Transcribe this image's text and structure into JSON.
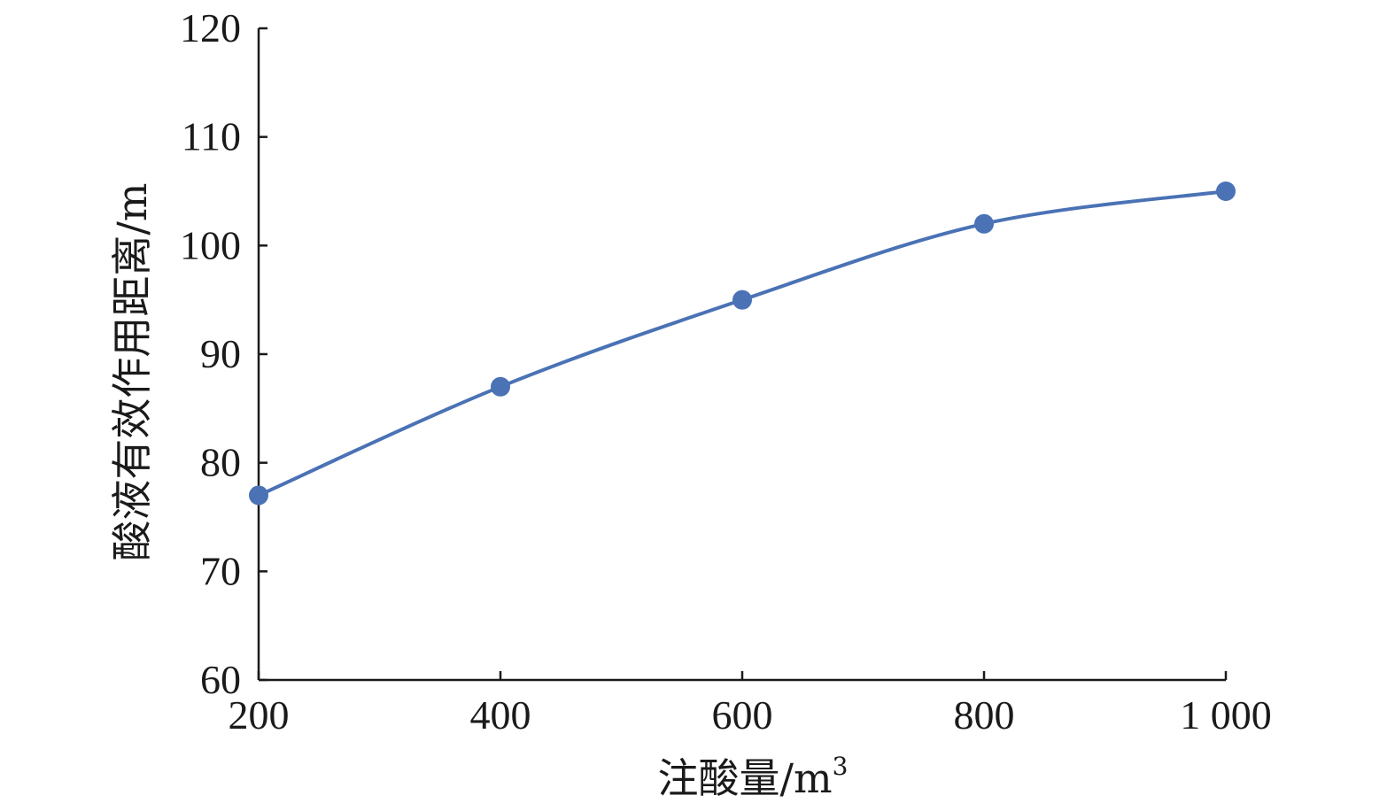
{
  "chart_data": {
    "type": "line",
    "x": [
      200,
      400,
      600,
      800,
      1000
    ],
    "series": [
      {
        "values": [
          77,
          87,
          95,
          102,
          105
        ],
        "color": "#4a72b5"
      }
    ],
    "xlabel": "注酸量/m",
    "xlabel_superscript": "3",
    "ylabel": "酸液有效作用距离/m",
    "xlim": [
      200,
      1000
    ],
    "ylim": [
      60,
      120
    ],
    "x_ticks": [
      200,
      400,
      600,
      800,
      1000
    ],
    "x_tick_labels": [
      "200",
      "400",
      "600",
      "800",
      "1 000"
    ],
    "y_ticks": [
      60,
      70,
      80,
      90,
      100,
      110,
      120
    ],
    "y_tick_labels": [
      "60",
      "70",
      "80",
      "90",
      "100",
      "110",
      "120"
    ],
    "smooth": true,
    "markers": true,
    "grid": false,
    "legend": "none"
  }
}
